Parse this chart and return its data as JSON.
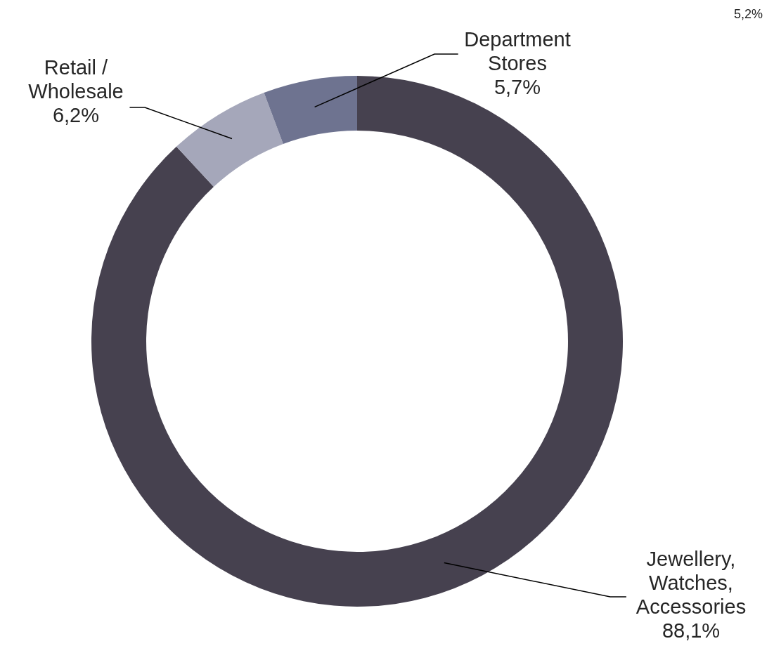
{
  "chart_data": {
    "type": "donut",
    "categories": [
      "Jewellery, Watches, Accessories",
      "Retail / Wholesale",
      "Department Stores"
    ],
    "values": [
      88.1,
      6.2,
      5.7
    ],
    "value_labels": [
      "88,1%",
      "6,2%",
      "5,7%"
    ],
    "colors": [
      "#46414f",
      "#a5a7ba",
      "#6e7390"
    ],
    "annotations": [
      "5,2%"
    ]
  }
}
